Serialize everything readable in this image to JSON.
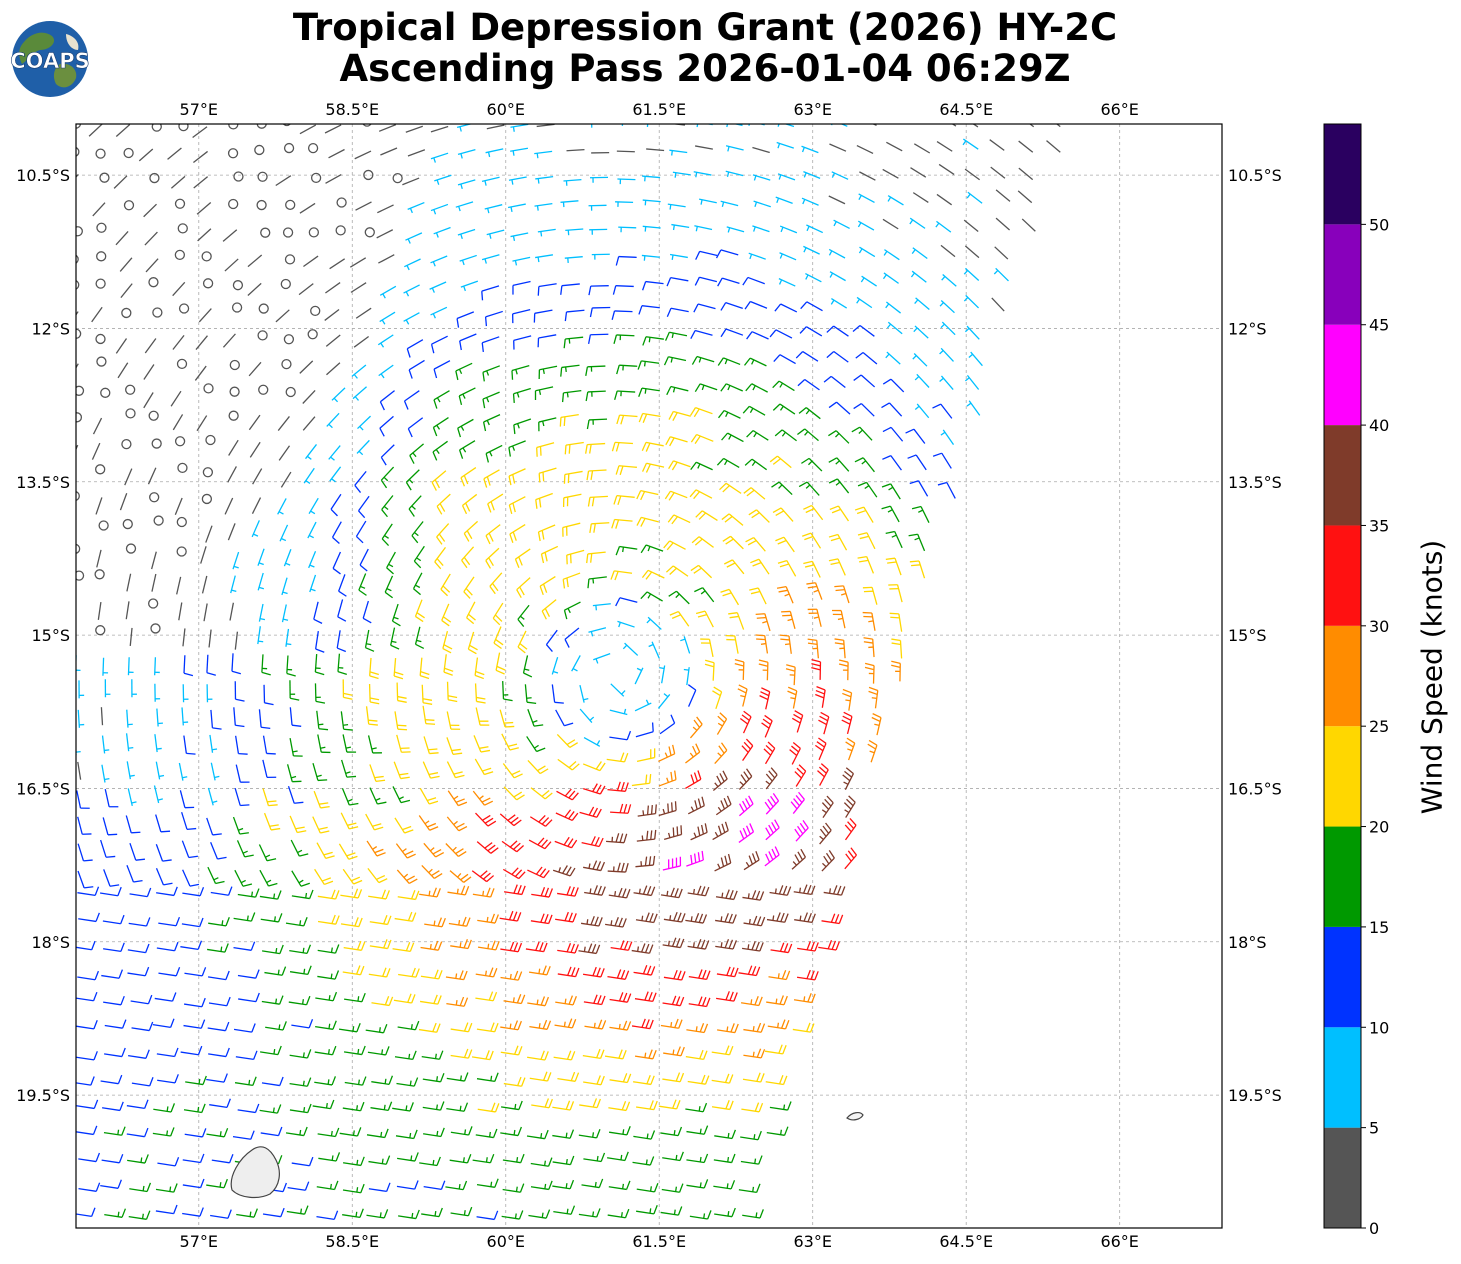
{
  "title": {
    "line1": "Tropical Depression Grant (2026) HY-2C",
    "line2": "Ascending Pass 2026-01-04 06:29Z"
  },
  "logo": {
    "text": "COAPS",
    "icon": "globe-icon"
  },
  "map": {
    "lon_ticks": [
      "57°E",
      "58.5°E",
      "60°E",
      "61.5°E",
      "63°E",
      "64.5°E",
      "66°E"
    ],
    "lat_ticks": [
      "10.5°S",
      "12°S",
      "13.5°S",
      "15°S",
      "16.5°S",
      "18°S",
      "19.5°S"
    ],
    "lon_range": [
      55.8,
      67.0
    ],
    "lat_range": [
      -10.0,
      -20.8
    ],
    "storm_center": {
      "lon": 61.1,
      "lat": -15.4
    },
    "swath_right_edge": {
      "north_lon": 65.5,
      "south_lon": 62.3
    }
  },
  "colorbar": {
    "label": "Wind Speed (knots)",
    "tick_labels": [
      "0",
      "5",
      "10",
      "15",
      "20",
      "25",
      "30",
      "35",
      "40",
      "45",
      "50"
    ],
    "colors": [
      "#555555",
      "#00bfff",
      "#0033ff",
      "#009900",
      "#ffd700",
      "#ff8c00",
      "#ff1111",
      "#7f3b2a",
      "#ff00ff",
      "#8800bb",
      "#2a0060"
    ]
  }
}
